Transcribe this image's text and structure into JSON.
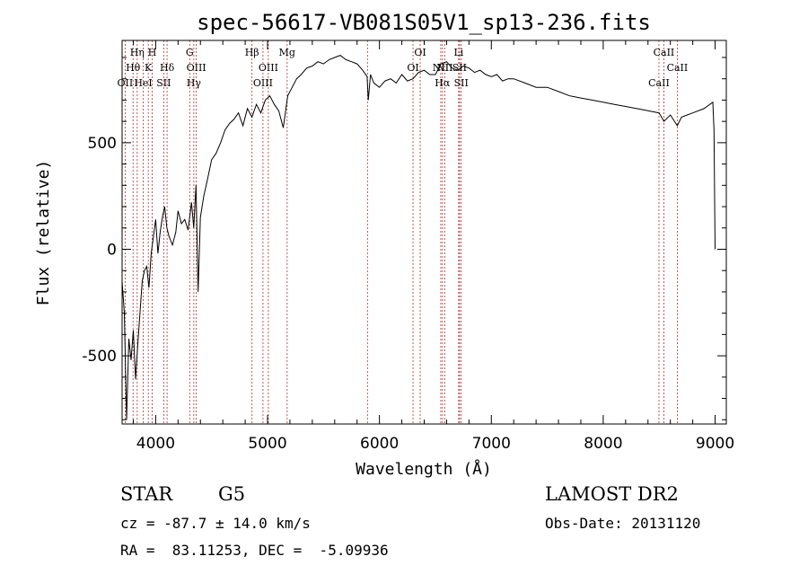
{
  "chart_data": {
    "type": "line",
    "title": "spec-56617-VB081S05V1_sp13-236.fits",
    "xlabel": "Wavelength (Å)",
    "ylabel": "Flux (relative)",
    "xlim": [
      3700,
      9100
    ],
    "ylim": [
      -820,
      980
    ],
    "xticks": [
      4000,
      5000,
      6000,
      7000,
      8000,
      9000
    ],
    "yticks": [
      -500,
      0,
      500
    ],
    "grid": false,
    "line_color": "#000000",
    "marker_color": "#b03030",
    "series": [
      {
        "x": [
          3700,
          3720,
          3740,
          3760,
          3780,
          3800,
          3820,
          3840,
          3860,
          3880,
          3900,
          3920,
          3940,
          3960,
          3980,
          4000,
          4020,
          4040,
          4060,
          4080,
          4100,
          4120,
          4150,
          4180,
          4200,
          4230,
          4260,
          4290,
          4320,
          4340,
          4360,
          4380,
          4400,
          4430,
          4460,
          4500,
          4540,
          4580,
          4620,
          4660,
          4700,
          4740,
          4780,
          4820,
          4860,
          4900,
          4940,
          4980,
          5020,
          5060,
          5100,
          5140,
          5180,
          5220,
          5260,
          5300,
          5350,
          5400,
          5450,
          5500,
          5550,
          5600,
          5650,
          5700,
          5750,
          5800,
          5850,
          5890,
          5900,
          5920,
          5950,
          6000,
          6050,
          6100,
          6150,
          6200,
          6250,
          6300,
          6350,
          6400,
          6450,
          6500,
          6550,
          6600,
          6650,
          6700,
          6750,
          6800,
          6850,
          6900,
          6950,
          7000,
          7050,
          7100,
          7150,
          7200,
          7300,
          7400,
          7500,
          7600,
          7700,
          7800,
          7900,
          8000,
          8100,
          8200,
          8300,
          8400,
          8500,
          8542,
          8600,
          8662,
          8700,
          8800,
          8900,
          8980,
          8990,
          9000
        ],
        "y": [
          -150,
          -300,
          -800,
          -420,
          -520,
          -380,
          -610,
          -450,
          -300,
          -150,
          -100,
          -80,
          -180,
          -20,
          60,
          140,
          -20,
          80,
          150,
          200,
          100,
          60,
          20,
          80,
          180,
          120,
          140,
          90,
          220,
          100,
          300,
          -200,
          150,
          250,
          320,
          420,
          450,
          500,
          560,
          590,
          610,
          640,
          580,
          660,
          620,
          680,
          640,
          700,
          720,
          680,
          650,
          570,
          720,
          760,
          800,
          820,
          850,
          860,
          880,
          870,
          890,
          900,
          910,
          890,
          880,
          870,
          840,
          810,
          700,
          820,
          780,
          760,
          790,
          800,
          780,
          820,
          790,
          800,
          830,
          840,
          820,
          820,
          870,
          880,
          850,
          840,
          860,
          850,
          830,
          840,
          820,
          810,
          820,
          790,
          800,
          800,
          780,
          760,
          760,
          740,
          720,
          710,
          700,
          690,
          680,
          670,
          660,
          650,
          640,
          600,
          630,
          580,
          620,
          640,
          660,
          690,
          560,
          0
        ]
      }
    ],
    "line_markers": [
      {
        "x": 3727,
        "label": "OII",
        "row": 3
      },
      {
        "x": 3798,
        "label": "Hθ",
        "row": 2
      },
      {
        "x": 3835,
        "label": "Hη",
        "row": 1
      },
      {
        "x": 3889,
        "label": "HeI",
        "row": 3
      },
      {
        "x": 3934,
        "label": "K",
        "row": 2
      },
      {
        "x": 3969,
        "label": "H",
        "row": 1
      },
      {
        "x": 4072,
        "label": "SII",
        "row": 3
      },
      {
        "x": 4102,
        "label": "Hδ",
        "row": 2
      },
      {
        "x": 4304,
        "label": "G",
        "row": 1
      },
      {
        "x": 4341,
        "label": "Hγ",
        "row": 3
      },
      {
        "x": 4363,
        "label": "OIII",
        "row": 2
      },
      {
        "x": 4861,
        "label": "Hβ",
        "row": 1
      },
      {
        "x": 4959,
        "label": "OIII",
        "row": 3
      },
      {
        "x": 5007,
        "label": "OIII",
        "row": 2
      },
      {
        "x": 5175,
        "label": "Mg",
        "row": 1
      },
      {
        "x": 5893,
        "label": "",
        "row": 0
      },
      {
        "x": 6300,
        "label": "OI",
        "row": 2
      },
      {
        "x": 6364,
        "label": "OI",
        "row": 1
      },
      {
        "x": 6548,
        "label": "NII",
        "row": 2
      },
      {
        "x": 6563,
        "label": "Hα",
        "row": 3
      },
      {
        "x": 6583,
        "label": "NII",
        "row": 2
      },
      {
        "x": 6708,
        "label": "Li",
        "row": 1
      },
      {
        "x": 6716,
        "label": "SII",
        "row": 2
      },
      {
        "x": 6731,
        "label": "SII",
        "row": 3
      },
      {
        "x": 8498,
        "label": "CaII",
        "row": 3
      },
      {
        "x": 8542,
        "label": "CaII",
        "row": 1
      },
      {
        "x": 8662,
        "label": "CaII",
        "row": 2
      }
    ]
  },
  "info": {
    "class": "STAR",
    "subclass": "G5",
    "survey": "LAMOST DR2",
    "cz": "cz = -87.7 ± 14.0 km/s",
    "obs_date": "Obs-Date: 20131120",
    "coords": "RA =  83.11253, DEC =  -5.09936"
  }
}
